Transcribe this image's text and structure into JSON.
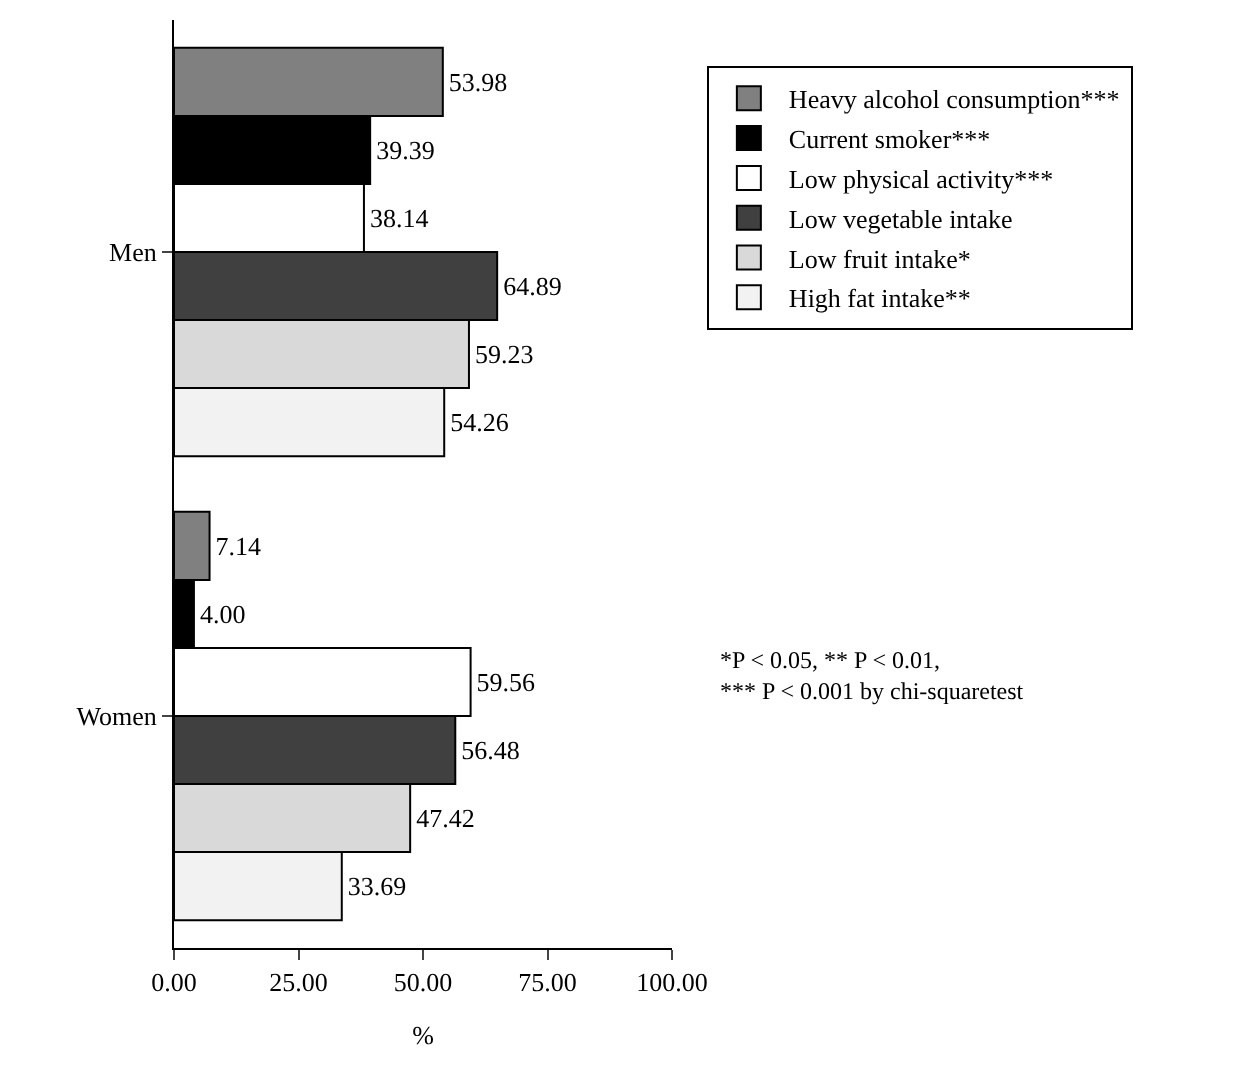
{
  "chart_data": {
    "type": "bar",
    "orientation": "horizontal",
    "categories": [
      "Men",
      "Women"
    ],
    "series": [
      {
        "name": "Heavy alcohol consumption***",
        "color": "#808080",
        "values": [
          53.98,
          7.14
        ],
        "value_labels": [
          "53.98",
          "7.14"
        ]
      },
      {
        "name": "Current smoker***",
        "color": "#000000",
        "values": [
          39.39,
          4.0
        ],
        "value_labels": [
          "39.39",
          "4.00"
        ]
      },
      {
        "name": "Low physical activity***",
        "color": "#ffffff",
        "values": [
          38.14,
          59.56
        ],
        "value_labels": [
          "38.14",
          "59.56"
        ]
      },
      {
        "name": "Low vegetable intake",
        "color": "#404040",
        "values": [
          64.89,
          56.48
        ],
        "value_labels": [
          "64.89",
          "56.48"
        ]
      },
      {
        "name": "Low fruit intake*",
        "color": "#d9d9d9",
        "values": [
          59.23,
          47.42
        ],
        "value_labels": [
          "59.23",
          "47.42"
        ]
      },
      {
        "name": "High fat intake**",
        "color": "#f2f2f2",
        "values": [
          54.26,
          33.69
        ],
        "value_labels": [
          "54.26",
          "33.69"
        ]
      }
    ],
    "xlabel": "%",
    "xlim": [
      0,
      100
    ],
    "xticks": [
      {
        "value": 0,
        "label": "0.00"
      },
      {
        "value": 25,
        "label": "25.00"
      },
      {
        "value": 50,
        "label": "50.00"
      },
      {
        "value": 75,
        "label": "75.00"
      },
      {
        "value": 100,
        "label": "100.00"
      }
    ],
    "annotations": [
      "*P < 0.05, ** P < 0.01,\n*** P < 0.001 by chi-squaretest"
    ],
    "legend": "right"
  }
}
